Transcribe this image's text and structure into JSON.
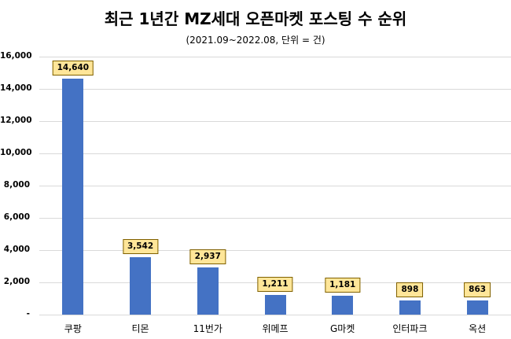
{
  "chart_data": {
    "type": "bar",
    "title": "최근 1년간 MZ세대 오픈마켓 포스팅 수 순위",
    "subtitle": "(2021.09~2022.08, 단위 = 건)",
    "xlabel": "",
    "ylabel": "",
    "categories": [
      "쿠팡",
      "티몬",
      "11번가",
      "위메프",
      "G마켓",
      "인터파크",
      "옥션"
    ],
    "values": [
      14640,
      3542,
      2937,
      1211,
      1181,
      898,
      863
    ],
    "value_labels": [
      "14,640",
      "3,542",
      "2,937",
      "1,211",
      "1,181",
      "898",
      "863"
    ],
    "ylim": [
      0,
      16000
    ],
    "yticks": [
      0,
      2000,
      4000,
      6000,
      8000,
      10000,
      12000,
      14000,
      16000
    ],
    "ytick_labels": [
      "-",
      "2,000",
      "4,000",
      "6,000",
      "8,000",
      "10,000",
      "12,000",
      "14,000",
      "16,000"
    ],
    "grid": true,
    "legend": null,
    "bar_color": "#4472c4",
    "label_box_fill": "#ffe699",
    "label_box_border": "#7f6000"
  }
}
